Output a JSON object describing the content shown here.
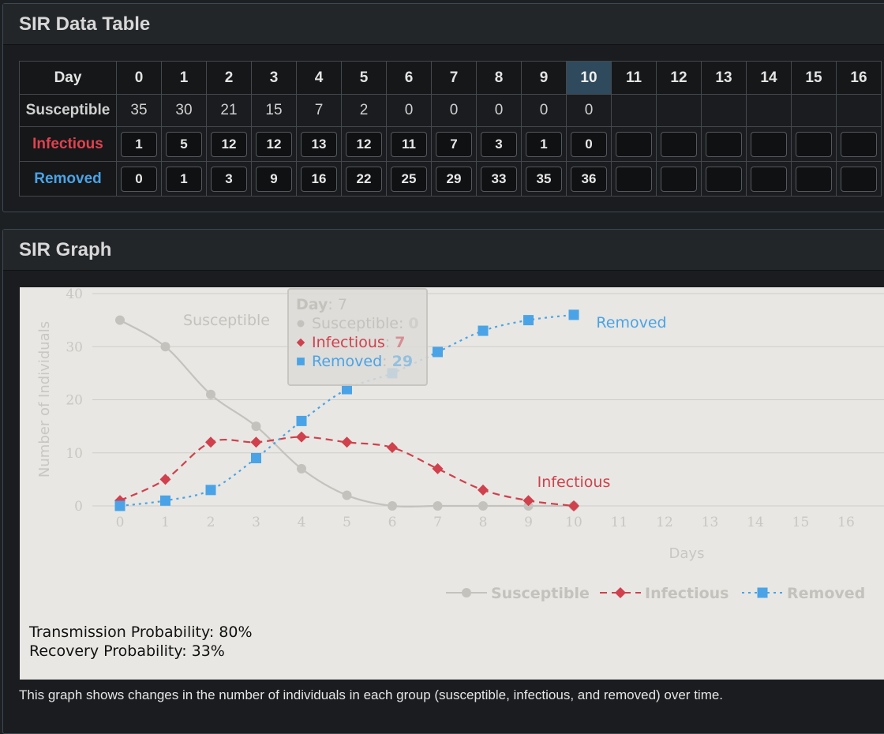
{
  "table_panel": {
    "title": "SIR Data Table"
  },
  "table": {
    "day_label": "Day",
    "days": [
      "0",
      "1",
      "2",
      "3",
      "4",
      "5",
      "6",
      "7",
      "8",
      "9",
      "10",
      "11",
      "12",
      "13",
      "14",
      "15",
      "16"
    ],
    "current_day_index": 10,
    "rows": [
      {
        "label": "Susceptible",
        "color": "#d0d0d0",
        "values": [
          "35",
          "30",
          "21",
          "15",
          "7",
          "2",
          "0",
          "0",
          "0",
          "0",
          "0",
          "",
          "",
          "",
          "",
          "",
          ""
        ]
      },
      {
        "label": "Infectious",
        "color": "#e0424f",
        "values": [
          "1",
          "5",
          "12",
          "12",
          "13",
          "12",
          "11",
          "7",
          "3",
          "1",
          "0",
          "",
          "",
          "",
          "",
          "",
          ""
        ]
      },
      {
        "label": "Removed",
        "color": "#4aa3e6",
        "values": [
          "0",
          "1",
          "3",
          "9",
          "16",
          "22",
          "25",
          "29",
          "33",
          "35",
          "36",
          "",
          "",
          "",
          "",
          "",
          ""
        ]
      }
    ]
  },
  "graph_panel": {
    "title": "SIR Graph"
  },
  "chart_data": {
    "type": "line",
    "x": [
      0,
      1,
      2,
      3,
      4,
      5,
      6,
      7,
      8,
      9,
      10
    ],
    "xticks": [
      "0",
      "1",
      "2",
      "3",
      "4",
      "5",
      "6",
      "7",
      "8",
      "9",
      "10",
      "11",
      "12",
      "13",
      "14",
      "15",
      "16"
    ],
    "yticks": [
      "0",
      "10",
      "20",
      "30",
      "40"
    ],
    "xlim": [
      0,
      16
    ],
    "ylim": [
      0,
      40
    ],
    "xlabel": "Days",
    "ylabel": "Number of Individuals",
    "grid": "horizontal",
    "legend_position": "bottom-right",
    "series": [
      {
        "name": "Susceptible",
        "color": "#c4c2bd",
        "style": "solid",
        "marker": "circle",
        "values": [
          35,
          30,
          21,
          15,
          7,
          2,
          0,
          0,
          0,
          0,
          0
        ],
        "label": "Susceptible"
      },
      {
        "name": "Infectious",
        "color": "#d0404d",
        "style": "dashed",
        "marker": "diamond",
        "values": [
          1,
          5,
          12,
          12,
          13,
          12,
          11,
          7,
          3,
          1,
          0
        ],
        "label": "Infectious"
      },
      {
        "name": "Removed",
        "color": "#4aa3e6",
        "style": "dotted",
        "marker": "square",
        "values": [
          0,
          1,
          3,
          9,
          16,
          22,
          25,
          29,
          33,
          35,
          36
        ],
        "label": "Removed"
      }
    ],
    "tooltip": {
      "day_label": "Day",
      "day_value": "7",
      "lines": [
        {
          "name": "Susceptible",
          "value": "0"
        },
        {
          "name": "Infectious",
          "value": "7"
        },
        {
          "name": "Removed",
          "value": "29"
        }
      ]
    }
  },
  "params": {
    "transmission": "Transmission Probability: 80%",
    "recovery": "Recovery Probability: 33%"
  },
  "caption": "This graph shows changes in the number of individuals in each group (susceptible, infectious, and removed) over time."
}
